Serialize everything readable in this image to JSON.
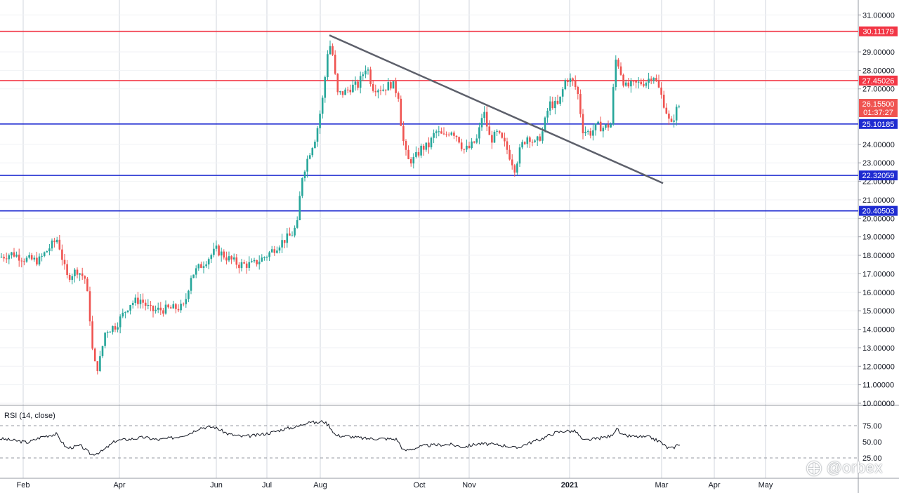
{
  "chart_data": {
    "type": "candlestick",
    "price_axis": {
      "ticks": [
        "31.00000",
        "29.00000",
        "28.00000",
        "27.00000",
        "24.00000",
        "23.00000",
        "22.00000",
        "21.00000",
        "20.00000",
        "19.00000",
        "18.00000",
        "17.00000",
        "16.00000",
        "15.00000",
        "14.00000",
        "13.00000",
        "12.00000",
        "11.00000",
        "10.00000"
      ],
      "range": [
        10.0,
        31.2
      ]
    },
    "time_axis": {
      "labels": [
        "Feb",
        "Apr",
        "Jun",
        "Jul",
        "Aug",
        "Oct",
        "Nov",
        "2021",
        "Mar",
        "Apr",
        "May"
      ]
    },
    "horizontal_levels": [
      {
        "value": 30.11179,
        "label": "30.11179",
        "color": "#f23645"
      },
      {
        "value": 27.45026,
        "label": "27.45026",
        "color": "#f23645"
      },
      {
        "value": 25.10185,
        "label": "25.10185",
        "color": "#1e2bd1"
      },
      {
        "value": 22.32059,
        "label": "22.32059",
        "color": "#1e2bd1"
      },
      {
        "value": 20.40503,
        "label": "20.40503",
        "color": "#1e2bd1"
      }
    ],
    "trendline": {
      "from": [
        "Aug",
        29.9
      ],
      "to": [
        "Mar",
        21.9
      ],
      "color": "#5d606b"
    },
    "current_price": {
      "value": "26.15500",
      "countdown": "01:37:27",
      "color": "#ef5350"
    },
    "series_colors": {
      "up": "#26a69a",
      "down": "#ef5350"
    },
    "price_path": [
      [
        0,
        17.9
      ],
      [
        18,
        18.1
      ],
      [
        35,
        17.8
      ],
      [
        55,
        17.7
      ],
      [
        70,
        18.4
      ],
      [
        82,
        18.9
      ],
      [
        95,
        16.8
      ],
      [
        110,
        17.2
      ],
      [
        122,
        16.7
      ],
      [
        128,
        14.6
      ],
      [
        133,
        12.2
      ],
      [
        140,
        11.9
      ],
      [
        150,
        13.9
      ],
      [
        165,
        14.2
      ],
      [
        185,
        15.4
      ],
      [
        200,
        15.6
      ],
      [
        215,
        15.0
      ],
      [
        240,
        15.1
      ],
      [
        262,
        15.2
      ],
      [
        272,
        16.9
      ],
      [
        290,
        17.6
      ],
      [
        308,
        18.3
      ],
      [
        322,
        17.9
      ],
      [
        340,
        17.5
      ],
      [
        360,
        17.5
      ],
      [
        380,
        18.0
      ],
      [
        400,
        18.7
      ],
      [
        415,
        19.1
      ],
      [
        425,
        19.8
      ],
      [
        428,
        22.0
      ],
      [
        440,
        23.5
      ],
      [
        450,
        24.5
      ],
      [
        460,
        26.6
      ],
      [
        468,
        29.6
      ],
      [
        474,
        28.8
      ],
      [
        480,
        26.7
      ],
      [
        490,
        26.8
      ],
      [
        500,
        27.1
      ],
      [
        510,
        27.2
      ],
      [
        522,
        28.3
      ],
      [
        530,
        27.1
      ],
      [
        545,
        27.0
      ],
      [
        558,
        27.3
      ],
      [
        568,
        26.6
      ],
      [
        572,
        24.6
      ],
      [
        580,
        23.1
      ],
      [
        590,
        23.2
      ],
      [
        600,
        23.8
      ],
      [
        610,
        23.9
      ],
      [
        620,
        24.7
      ],
      [
        632,
        24.4
      ],
      [
        642,
        24.8
      ],
      [
        652,
        24.4
      ],
      [
        660,
        23.7
      ],
      [
        668,
        23.8
      ],
      [
        680,
        24.3
      ],
      [
        688,
        25.9
      ],
      [
        698,
        24.2
      ],
      [
        708,
        24.6
      ],
      [
        720,
        23.9
      ],
      [
        733,
        22.7
      ],
      [
        742,
        23.9
      ],
      [
        752,
        24.5
      ],
      [
        762,
        24.0
      ],
      [
        772,
        24.6
      ],
      [
        782,
        26.2
      ],
      [
        795,
        26.1
      ],
      [
        806,
        27.6
      ],
      [
        815,
        27.4
      ],
      [
        822,
        26.9
      ],
      [
        830,
        24.8
      ],
      [
        840,
        24.6
      ],
      [
        850,
        25.0
      ],
      [
        860,
        24.9
      ],
      [
        870,
        25.1
      ],
      [
        876,
        28.6
      ],
      [
        880,
        28.4
      ],
      [
        890,
        27.1
      ],
      [
        900,
        27.2
      ],
      [
        910,
        27.3
      ],
      [
        920,
        27.4
      ],
      [
        930,
        27.8
      ],
      [
        940,
        26.8
      ],
      [
        948,
        25.9
      ],
      [
        955,
        24.9
      ],
      [
        962,
        25.8
      ],
      [
        968,
        26.15
      ]
    ],
    "rsi": {
      "title": "RSI (14, close)",
      "ticks": [
        "75.00",
        "50.00",
        "25.00"
      ],
      "path": [
        [
          0,
          55
        ],
        [
          20,
          52
        ],
        [
          40,
          49
        ],
        [
          60,
          58
        ],
        [
          80,
          62
        ],
        [
          95,
          40
        ],
        [
          115,
          44
        ],
        [
          130,
          30
        ],
        [
          145,
          35
        ],
        [
          165,
          52
        ],
        [
          185,
          54
        ],
        [
          205,
          57
        ],
        [
          225,
          53
        ],
        [
          250,
          57
        ],
        [
          270,
          63
        ],
        [
          285,
          72
        ],
        [
          305,
          73
        ],
        [
          325,
          62
        ],
        [
          345,
          58
        ],
        [
          365,
          60
        ],
        [
          385,
          64
        ],
        [
          405,
          70
        ],
        [
          425,
          74
        ],
        [
          440,
          82
        ],
        [
          450,
          79
        ],
        [
          460,
          82
        ],
        [
          468,
          76
        ],
        [
          478,
          60
        ],
        [
          500,
          58
        ],
        [
          520,
          55
        ],
        [
          545,
          55
        ],
        [
          565,
          54
        ],
        [
          575,
          36
        ],
        [
          590,
          40
        ],
        [
          605,
          44
        ],
        [
          620,
          45
        ],
        [
          640,
          46
        ],
        [
          660,
          42
        ],
        [
          680,
          47
        ],
        [
          700,
          46
        ],
        [
          720,
          44
        ],
        [
          735,
          40
        ],
        [
          750,
          47
        ],
        [
          770,
          54
        ],
        [
          790,
          64
        ],
        [
          805,
          67
        ],
        [
          820,
          66
        ],
        [
          830,
          52
        ],
        [
          845,
          54
        ],
        [
          860,
          57
        ],
        [
          870,
          59
        ],
        [
          878,
          71
        ],
        [
          885,
          60
        ],
        [
          905,
          58
        ],
        [
          925,
          57
        ],
        [
          940,
          50
        ],
        [
          950,
          41
        ],
        [
          958,
          40
        ],
        [
          965,
          46
        ],
        [
          968,
          47
        ]
      ],
      "band": [
        25,
        75
      ]
    }
  },
  "watermark": {
    "text": "@orbex",
    "icon": "orbex-logo-icon"
  }
}
